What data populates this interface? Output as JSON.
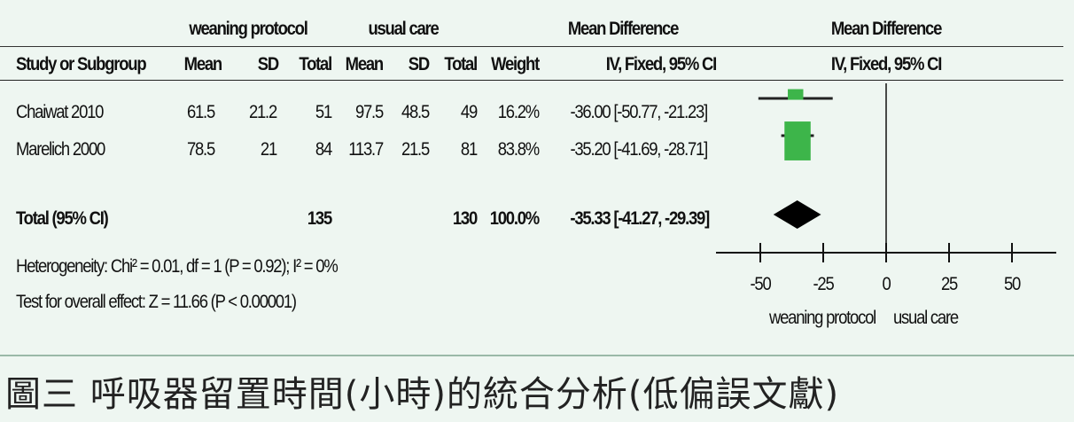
{
  "headers": {
    "group1": "weaning protocol",
    "group2": "usual care",
    "md": "Mean Difference",
    "md_plot": "Mean Difference",
    "study": "Study or Subgroup",
    "mean1": "Mean",
    "sd1": "SD",
    "total1": "Total",
    "mean2": "Mean",
    "sd2": "SD",
    "total2": "Total",
    "weight": "Weight",
    "method": "IV, Fixed, 95% CI",
    "method_plot": "IV, Fixed, 95% CI"
  },
  "studies": [
    {
      "name": "Chaiwat 2010",
      "mean1": "61.5",
      "sd1": "21.2",
      "total1": "51",
      "mean2": "97.5",
      "sd2": "48.5",
      "total2": "49",
      "weight": "16.2%",
      "ci": "-36.00 [-50.77, -21.23]"
    },
    {
      "name": "Marelich 2000",
      "mean1": "78.5",
      "sd1": "21",
      "total1": "84",
      "mean2": "113.7",
      "sd2": "21.5",
      "total2": "81",
      "weight": "83.8%",
      "ci": "-35.20 [-41.69, -28.71]"
    }
  ],
  "total": {
    "label": "Total (95% CI)",
    "total1": "135",
    "total2": "130",
    "weight": "100.0%",
    "ci": "-35.33 [-41.27, -29.39]"
  },
  "heterogeneity": "Heterogeneity: Chi² = 0.01, df = 1 (P = 0.92); I² = 0%",
  "overall_effect": "Test for overall effect: Z = 11.66 (P < 0.00001)",
  "axis": {
    "ticks": [
      "-50",
      "-25",
      "0",
      "25",
      "50"
    ],
    "left_label": "weaning protocol",
    "right_label": "usual care"
  },
  "caption": "圖三  呼吸器留置時間(小時)的統合分析(低偏誤文獻)",
  "colors": {
    "study_marker": "#3db54a",
    "pooled_marker": "#000000",
    "panel_bg": "#eef6f1"
  },
  "chart_data": {
    "type": "forest",
    "xlim": [
      -60,
      60
    ],
    "x_ticks": [
      -50,
      -25,
      0,
      25,
      50
    ],
    "null_line": 0,
    "studies": [
      {
        "name": "Chaiwat 2010",
        "md": -36.0,
        "lower": -50.77,
        "upper": -21.23,
        "weight": 16.2
      },
      {
        "name": "Marelich 2000",
        "md": -35.2,
        "lower": -41.69,
        "upper": -28.71,
        "weight": 83.8
      }
    ],
    "pooled": {
      "md": -35.33,
      "lower": -41.27,
      "upper": -29.39
    }
  }
}
